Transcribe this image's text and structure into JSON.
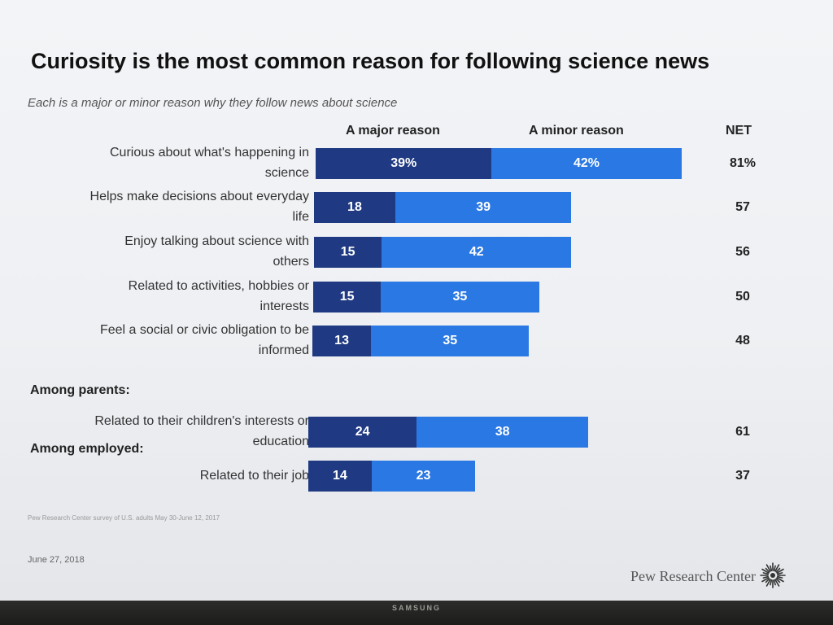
{
  "header": {
    "title": "Curiosity is the most common reason for following science news",
    "subtitle": "Each is a major or minor reason why they follow news about science"
  },
  "columns": {
    "major": "A major reason",
    "minor": "A minor reason",
    "net": "NET"
  },
  "groups": {
    "parents": "Among parents:",
    "employed": "Among employed:"
  },
  "rows": [
    {
      "label_lines": [
        "Curious about what's happening in",
        "science"
      ],
      "major_text": "39%",
      "minor_text": "42%",
      "net_text": "81%"
    },
    {
      "label_lines": [
        "Helps make decisions about everyday",
        "life"
      ],
      "major_text": "18",
      "minor_text": "39",
      "net_text": "57"
    },
    {
      "label_lines": [
        "Enjoy talking about science with",
        "others"
      ],
      "major_text": "15",
      "minor_text": "42",
      "net_text": "56"
    },
    {
      "label_lines": [
        "Related to activities, hobbies or",
        "interests"
      ],
      "major_text": "15",
      "minor_text": "35",
      "net_text": "50"
    },
    {
      "label_lines": [
        "Feel a social or civic obligation to be",
        "informed"
      ],
      "major_text": "13",
      "minor_text": "35",
      "net_text": "48"
    },
    {
      "label_lines": [
        "Related to their children's interests or",
        "education"
      ],
      "major_text": "24",
      "minor_text": "38",
      "net_text": "61"
    },
    {
      "label_lines": [
        "Related to their job"
      ],
      "major_text": "14",
      "minor_text": "23",
      "net_text": "37"
    }
  ],
  "chart_data": {
    "type": "bar",
    "orientation": "horizontal",
    "stacked": true,
    "title": "Curiosity is the most common reason for following science news",
    "subtitle": "Each is a major or minor reason why they follow news about science",
    "unit": "%",
    "categories": [
      "Curious about what's happening in science",
      "Helps make decisions about everyday life",
      "Enjoy talking about science with others",
      "Related to activities, hobbies or interests",
      "Feel a social or civic obligation to be informed",
      "Related to their children's interests or education",
      "Related to their job"
    ],
    "category_groups": [
      {
        "label": "",
        "categories": [
          0,
          1,
          2,
          3,
          4
        ]
      },
      {
        "label": "Among parents:",
        "categories": [
          5
        ]
      },
      {
        "label": "Among employed:",
        "categories": [
          6
        ]
      }
    ],
    "series": [
      {
        "name": "A major reason",
        "values": [
          39,
          18,
          15,
          15,
          13,
          24,
          14
        ],
        "color": "#1f3a82"
      },
      {
        "name": "A minor reason",
        "values": [
          42,
          39,
          42,
          35,
          35,
          38,
          23
        ],
        "color": "#2a78e3"
      }
    ],
    "net": {
      "name": "NET",
      "values": [
        81,
        57,
        56,
        50,
        48,
        61,
        37
      ]
    },
    "grid": false,
    "legend": "top (column headers)"
  },
  "footer": {
    "source": "Pew Research Center survey of U.S. adults May 30-June 12, 2017",
    "date": "June 27, 2018",
    "brand": "Pew Research Center"
  },
  "monitor": {
    "brand": "SAMSUNG"
  }
}
